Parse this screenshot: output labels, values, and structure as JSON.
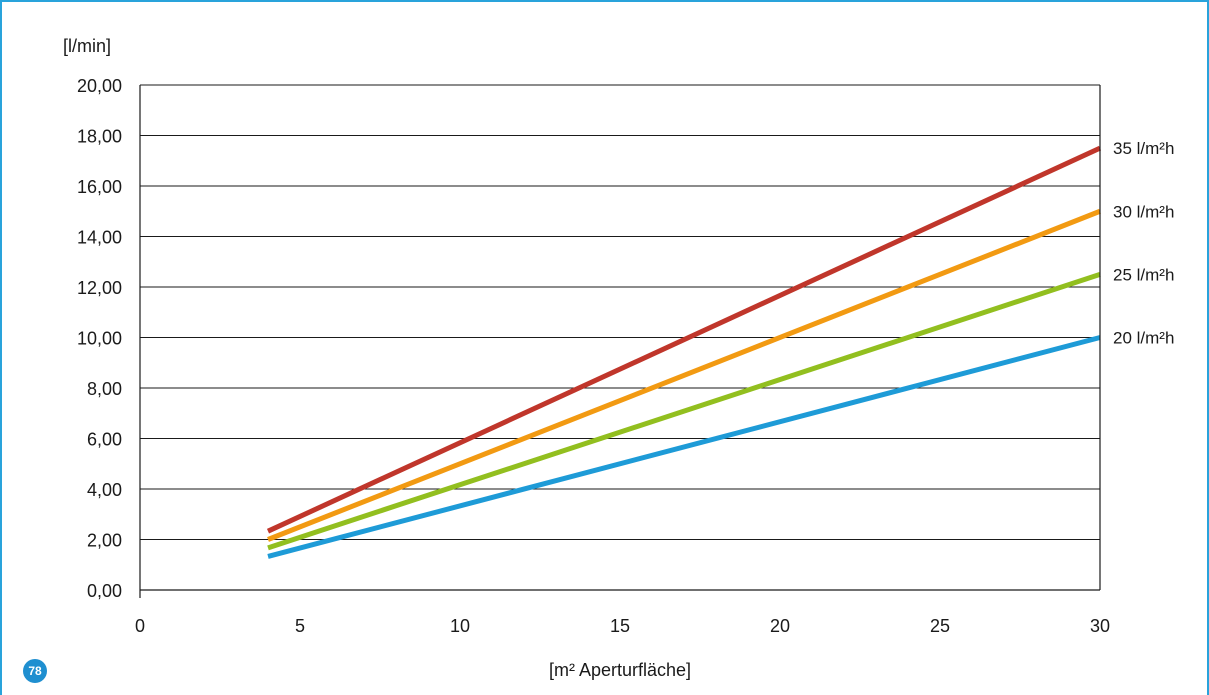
{
  "page_number": "78",
  "colors": {
    "frame": "#29a3db",
    "badge": "#1f8fd0"
  },
  "chart_data": {
    "type": "line",
    "ylabel": "[l/min]",
    "xlabel": "[m² Aperturfläche]",
    "xlim": [
      0,
      30
    ],
    "ylim": [
      0,
      20
    ],
    "xticks": [
      "0",
      "5",
      "10",
      "15",
      "20",
      "25",
      "30"
    ],
    "yticks": [
      "0,00",
      "2,00",
      "4,00",
      "6,00",
      "8,00",
      "10,00",
      "12,00",
      "14,00",
      "16,00",
      "18,00",
      "20,00"
    ],
    "grid": "horizontal",
    "series": [
      {
        "name": "20 l/m²h",
        "color": "#1e9bd7",
        "x": [
          4,
          30
        ],
        "y": [
          1.33,
          10.0
        ]
      },
      {
        "name": "25 l/m²h",
        "color": "#92bf1f",
        "x": [
          4,
          30
        ],
        "y": [
          1.67,
          12.5
        ]
      },
      {
        "name": "30 l/m²h",
        "color": "#f29a12",
        "x": [
          4,
          30
        ],
        "y": [
          2.0,
          15.0
        ]
      },
      {
        "name": "35 l/m²h",
        "color": "#c0362b",
        "x": [
          4,
          30
        ],
        "y": [
          2.33,
          17.5
        ]
      }
    ]
  }
}
